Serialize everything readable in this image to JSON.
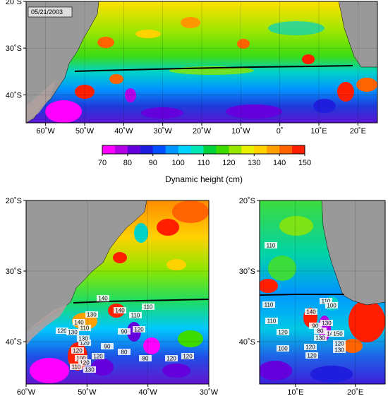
{
  "date_label": "05/21/2003",
  "colorbar": {
    "title": "Dynamic height (cm)",
    "ticks": [
      "70",
      "80",
      "90",
      "100",
      "110",
      "120",
      "130",
      "140",
      "150"
    ],
    "min": 70,
    "max": 150,
    "colors": [
      "#ff00ff",
      "#b400e6",
      "#6400dc",
      "#1e1edc",
      "#0050ff",
      "#0096ff",
      "#00d2ff",
      "#00e6b4",
      "#00d23c",
      "#3cdc00",
      "#96e600",
      "#e6f000",
      "#ffd200",
      "#ffa000",
      "#ff6400",
      "#ff1e00"
    ]
  },
  "panels": {
    "top": {
      "x_ticks": [
        "60˚W",
        "50˚W",
        "40˚W",
        "30˚W",
        "20˚W",
        "10˚W",
        "0˚",
        "10˚E",
        "20˚E"
      ],
      "y_ticks": [
        "20˚S",
        "30˚S",
        "40˚S"
      ],
      "lon_range": [
        -65,
        25
      ],
      "lat_range": [
        -46,
        -20
      ]
    },
    "bottom_left": {
      "x_ticks": [
        "60˚W",
        "50˚W",
        "40˚W",
        "30˚W"
      ],
      "y_ticks": [
        "20˚S",
        "30˚S",
        "40˚S"
      ],
      "lon_range": [
        -60,
        -30
      ],
      "lat_range": [
        -46,
        -20
      ],
      "contour_labels": [
        "120",
        "130",
        "140",
        "110",
        "130",
        "140",
        "120",
        "130",
        "120",
        "100",
        "120",
        "110",
        "130",
        "120",
        "90",
        "80",
        "110",
        "90",
        "120",
        "110",
        "80",
        "120",
        "120",
        "140"
      ]
    },
    "bottom_right": {
      "x_ticks": [
        "10˚E",
        "20˚E"
      ],
      "y_ticks": [
        "20˚S",
        "30˚S",
        "40˚S"
      ],
      "lon_range": [
        4,
        25
      ],
      "lat_range": [
        -46,
        -20
      ],
      "contour_labels": [
        "110",
        "110",
        "110",
        "120",
        "100",
        "140",
        "120",
        "110",
        "100",
        "90",
        "80",
        "130",
        "120",
        "140",
        "150",
        "120",
        "130",
        "130"
      ]
    }
  }
}
